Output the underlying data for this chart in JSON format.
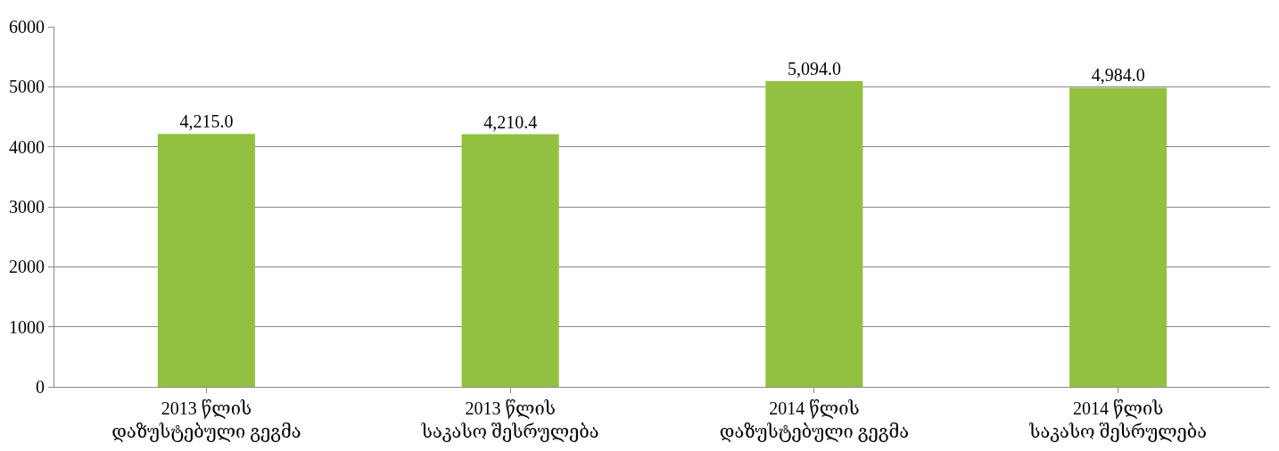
{
  "chart_data": {
    "type": "bar",
    "categories": [
      "2013 წლის დაზუსტებული გეგმა",
      "2013 წლის საკასო შესრულება",
      "2014 წლის დაზუსტებული გეგმა",
      "2014 წლის საკასო შესრულება"
    ],
    "values": [
      4215.0,
      4210.4,
      5094.0,
      4984.0
    ],
    "value_labels": [
      "4,215.0",
      "4,210.4",
      "5,094.0",
      "4,984.0"
    ],
    "color": "#92c040",
    "ylim": [
      0,
      6000
    ],
    "yticks": [
      0,
      1000,
      2000,
      3000,
      4000,
      5000,
      6000
    ],
    "grid": "y",
    "legend": false
  }
}
